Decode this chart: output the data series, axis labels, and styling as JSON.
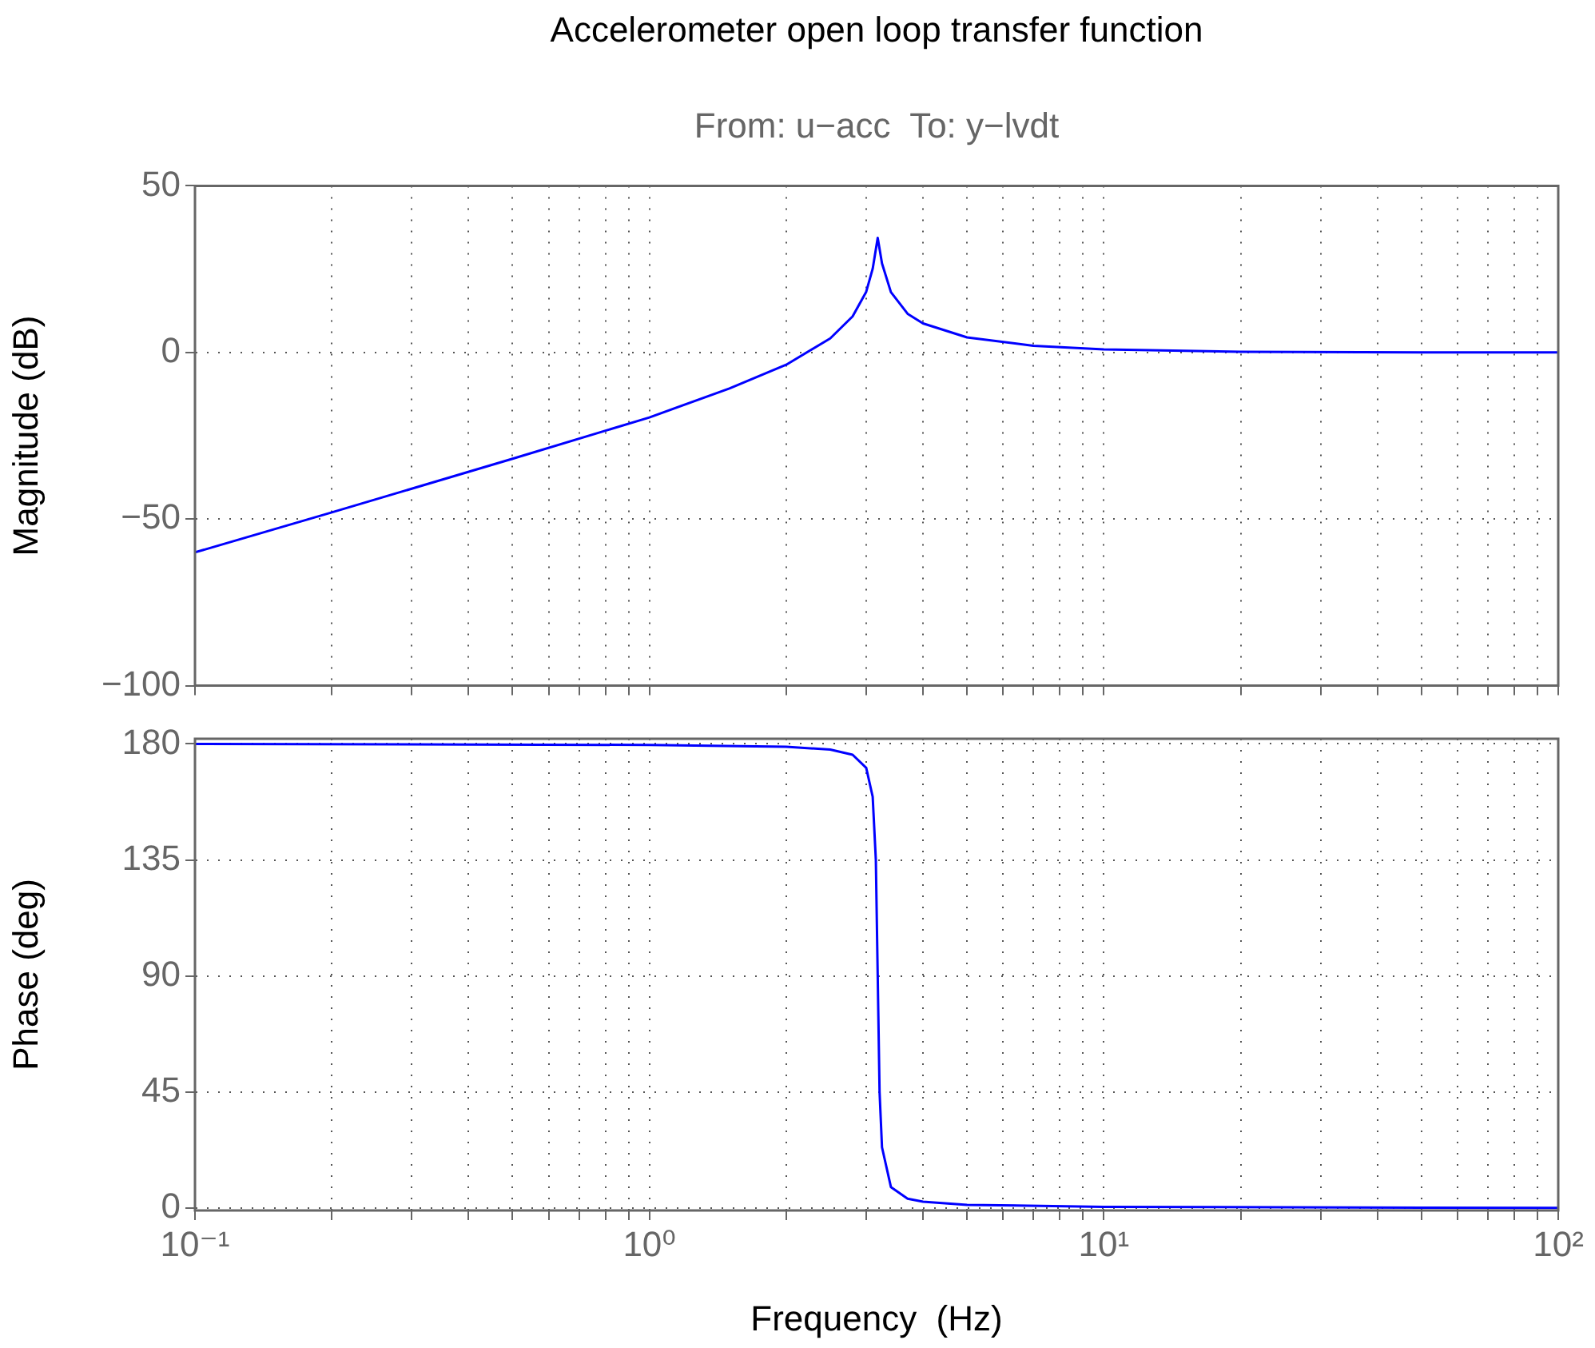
{
  "chart_data": [
    {
      "type": "line",
      "title": "Accelerometer open loop transfer function",
      "subtitle": "From: u−acc  To: y−lvdt",
      "ylabel": "Magnitude (dB)",
      "log": "x",
      "grid": true,
      "legend": false,
      "marker": "none",
      "line_style": "solid",
      "tick_labels": "y",
      "x": [
        0.1,
        0.2,
        0.5,
        1,
        1.5,
        2,
        2.5,
        2.8,
        3,
        3.1,
        3.18,
        3.25,
        3.4,
        3.7,
        4,
        5,
        7,
        10,
        20,
        50,
        100
      ],
      "series": [
        {
          "color": "#0000ff",
          "values": [
            -60,
            -48,
            -31.9,
            -19.5,
            -10.8,
            -3.7,
            4.2,
            10.8,
            18.2,
            25.1,
            34.4,
            26.7,
            18.1,
            11.6,
            8.7,
            4.5,
            2,
            0.9,
            0.2,
            0,
            0
          ]
        }
      ],
      "xlim": [
        0.1,
        100
      ],
      "ylim": [
        -100,
        50
      ],
      "yticks": [
        {
          "value": -100,
          "label": "−100"
        },
        {
          "value": -50,
          "label": "−50"
        },
        0,
        50
      ],
      "xticks": [
        {
          "value": 0.1,
          "label": null
        },
        {
          "value": 0.2,
          "label": null
        },
        {
          "value": 0.3,
          "label": null
        },
        {
          "value": 0.4,
          "label": null
        },
        {
          "value": 0.5,
          "label": null
        },
        {
          "value": 0.6,
          "label": null
        },
        {
          "value": 0.7,
          "label": null
        },
        {
          "value": 0.8,
          "label": null
        },
        {
          "value": 0.9,
          "label": null
        },
        {
          "value": 1,
          "label": null
        },
        {
          "value": 2,
          "label": null
        },
        {
          "value": 3,
          "label": null
        },
        {
          "value": 4,
          "label": null
        },
        {
          "value": 5,
          "label": null
        },
        {
          "value": 6,
          "label": null
        },
        {
          "value": 7,
          "label": null
        },
        {
          "value": 8,
          "label": null
        },
        {
          "value": 9,
          "label": null
        },
        {
          "value": 10,
          "label": null
        },
        {
          "value": 20,
          "label": null
        },
        {
          "value": 30,
          "label": null
        },
        {
          "value": 40,
          "label": null
        },
        {
          "value": 50,
          "label": null
        },
        {
          "value": 60,
          "label": null
        },
        {
          "value": 70,
          "label": null
        },
        {
          "value": 80,
          "label": null
        },
        {
          "value": 90,
          "label": null
        },
        {
          "value": 100,
          "label": null
        }
      ]
    },
    {
      "type": "line",
      "xlabel": "Frequency  (Hz)",
      "ylabel": "Phase (deg)",
      "log": "x",
      "grid": true,
      "legend": false,
      "marker": "none",
      "line_style": "solid",
      "x": [
        0.1,
        1,
        2,
        2.5,
        2.8,
        3,
        3.1,
        3.15,
        3.18,
        3.21,
        3.25,
        3.4,
        3.7,
        4,
        5,
        10,
        100
      ],
      "series": [
        {
          "color": "#0000ff",
          "values": [
            180,
            179.6,
            178.9,
            177.8,
            175.8,
            170.7,
            159.5,
            135,
            90,
            45,
            23.5,
            8.1,
            3.6,
            2.4,
            1.2,
            0.4,
            0
          ]
        }
      ],
      "xlim": [
        0.1,
        100
      ],
      "ylim": [
        -1,
        182
      ],
      "yticks": [
        0,
        45,
        90,
        135,
        180
      ],
      "xticks": [
        {
          "value": 0.1,
          "label": "10⁻¹"
        },
        {
          "value": 0.2,
          "label": null
        },
        {
          "value": 0.3,
          "label": null
        },
        {
          "value": 0.4,
          "label": null
        },
        {
          "value": 0.5,
          "label": null
        },
        {
          "value": 0.6,
          "label": null
        },
        {
          "value": 0.7,
          "label": null
        },
        {
          "value": 0.8,
          "label": null
        },
        {
          "value": 0.9,
          "label": null
        },
        {
          "value": 1,
          "label": "10⁰"
        },
        {
          "value": 2,
          "label": null
        },
        {
          "value": 3,
          "label": null
        },
        {
          "value": 4,
          "label": null
        },
        {
          "value": 5,
          "label": null
        },
        {
          "value": 6,
          "label": null
        },
        {
          "value": 7,
          "label": null
        },
        {
          "value": 8,
          "label": null
        },
        {
          "value": 9,
          "label": null
        },
        {
          "value": 10,
          "label": "10¹"
        },
        {
          "value": 20,
          "label": null
        },
        {
          "value": 30,
          "label": null
        },
        {
          "value": 40,
          "label": null
        },
        {
          "value": 50,
          "label": null
        },
        {
          "value": 60,
          "label": null
        },
        {
          "value": 70,
          "label": null
        },
        {
          "value": 80,
          "label": null
        },
        {
          "value": 90,
          "label": null
        },
        {
          "value": 100,
          "label": "10²"
        }
      ]
    }
  ]
}
